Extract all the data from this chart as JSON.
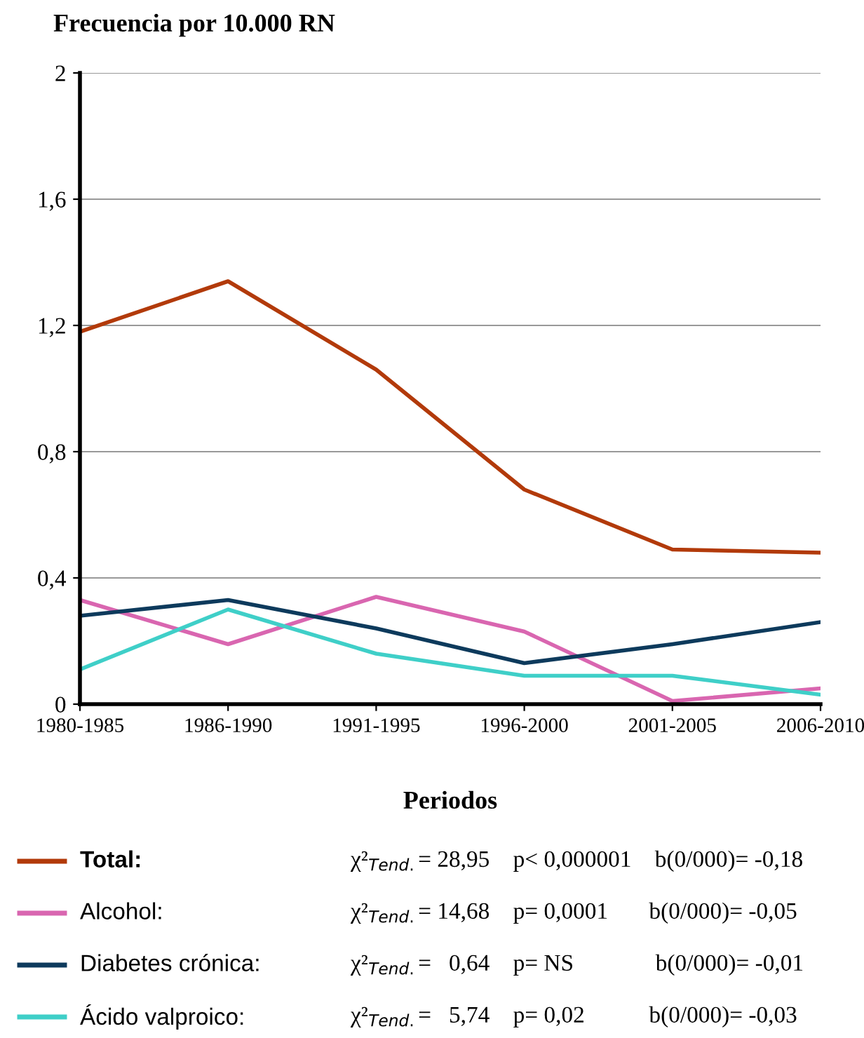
{
  "chart_data": {
    "type": "line",
    "title": "Frecuencia por 10.000 RN",
    "xlabel": "Periodos",
    "categories": [
      "1980-1985",
      "1986-1990",
      "1991-1995",
      "1996-2000",
      "2001-2005",
      "2006-2010"
    ],
    "series": [
      {
        "name": "Total:",
        "color": "#b23a0a",
        "values": [
          1.18,
          1.34,
          1.06,
          0.68,
          0.49,
          0.48
        ]
      },
      {
        "name": "Alcohol:",
        "color": "#d966b0",
        "values": [
          0.33,
          0.19,
          0.34,
          0.23,
          0.01,
          0.05
        ]
      },
      {
        "name": "Diabetes crónica:",
        "color": "#0d3a5c",
        "values": [
          0.28,
          0.33,
          0.24,
          0.13,
          0.19,
          0.26
        ]
      },
      {
        "name": "Ácido valproico:",
        "color": "#3fcfc8",
        "values": [
          0.11,
          0.3,
          0.16,
          0.09,
          0.09,
          0.03
        ]
      }
    ],
    "ylim": [
      0,
      2
    ],
    "yticks": [
      0,
      {
        "value": 0.4,
        "label": "0,4"
      },
      {
        "value": 0.8,
        "label": "0,8"
      },
      {
        "value": 1.2,
        "label": "1,2"
      },
      {
        "value": 1.6,
        "label": "1,6"
      },
      2
    ],
    "grid": "y",
    "legend": "bottom",
    "marker": "none",
    "line_style": "solid",
    "annotations": [
      "χ²$_{Tend.}$= 28,95    p< 0,000001    b(0/000)= -0,18",
      "χ²$_{Tend.}$= 14,68    p= 0,0001       b(0/000)= -0,05",
      "χ²$_{Tend.}$=   0,64    p= NS              b(0/000)= -0,01",
      "χ²$_{Tend.}$=   5,74    p= 0,02           b(0/000)= -0,03"
    ]
  }
}
